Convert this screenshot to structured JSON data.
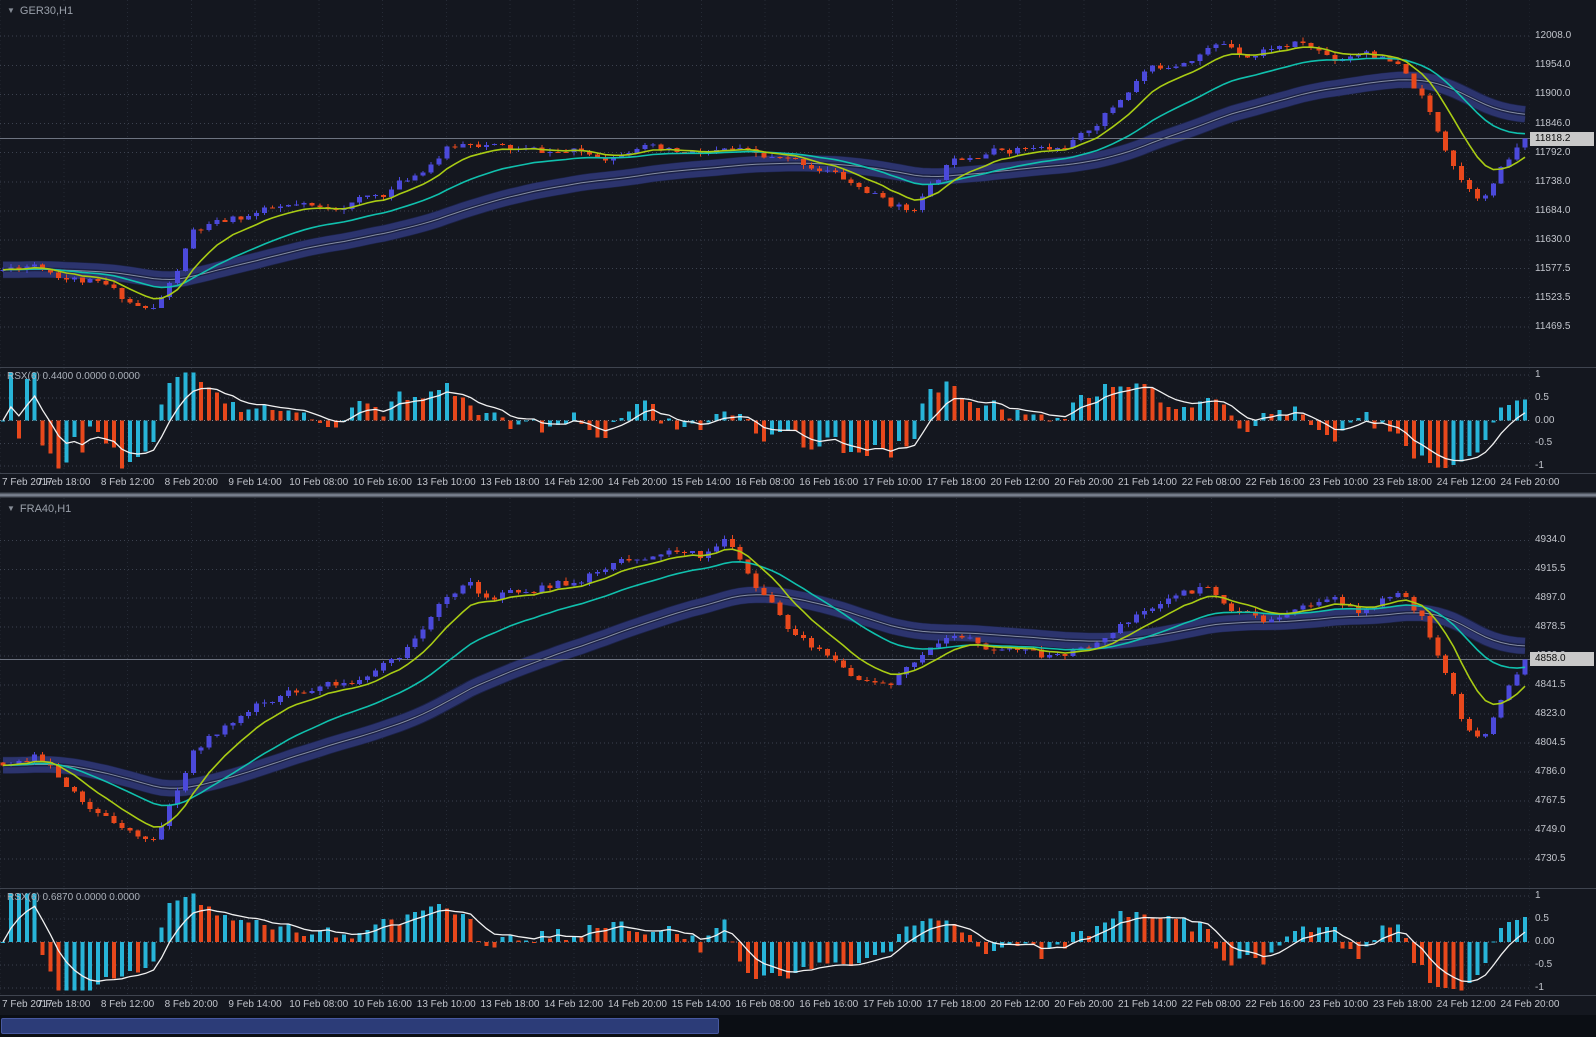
{
  "colors": {
    "background": "#14171f",
    "grid_h": "#3c424f",
    "grid_v": "#262b36",
    "bull": "#4b49da",
    "bear": "#e8481c",
    "ma_fast": "#a9cc14",
    "ma_slow": "#10c0ad",
    "band_core": "#1c2349",
    "band_edge": "#2c346e",
    "band_mid": "#98a0b2",
    "hist_up": "#28b4d8",
    "hist_down": "#e8481c",
    "rsx_line": "#f0f0f0",
    "zero_line": "#878d98",
    "axis_text": "#c2c5cc",
    "title_text": "#9aa0aa",
    "current_line": "#6d7380",
    "price_tag_bg": "#c9c9c9",
    "price_tag_text": "#0d0d0d",
    "scrollbar_thumb": "#2c3c78",
    "scrollbar_thumb_border": "#47589f",
    "scrollbar_track": "#0b0e14"
  },
  "time_axis_labels": [
    "7 Feb 2017",
    "7 Feb 18:00",
    "8 Feb 12:00",
    "8 Feb 20:00",
    "9 Feb 14:00",
    "10 Feb 08:00",
    "10 Feb 16:00",
    "13 Feb 10:00",
    "13 Feb 18:00",
    "14 Feb 12:00",
    "14 Feb 20:00",
    "15 Feb 14:00",
    "16 Feb 08:00",
    "16 Feb 16:00",
    "17 Feb 10:00",
    "17 Feb 18:00",
    "20 Feb 12:00",
    "20 Feb 20:00",
    "21 Feb 14:00",
    "22 Feb 08:00",
    "22 Feb 16:00",
    "23 Feb 10:00",
    "23 Feb 18:00",
    "24 Feb 12:00",
    "24 Feb 20:00"
  ],
  "rsx_axis_ticks": [
    "1",
    "0.5",
    "0.00",
    "-0.5",
    "-1"
  ],
  "chart_data": [
    {
      "type": "candlestick",
      "symbol": "GER30",
      "timeframe": "H1",
      "title": "GER30,H1",
      "collapse_icon": "▼",
      "current_price": 11818.2,
      "current_price_label": "11818.2",
      "y_axis": {
        "min": 11395,
        "max": 12075,
        "ticks": [
          "12008.0",
          "11954.0",
          "11900.0",
          "11846.0",
          "11792.0",
          "11738.0",
          "11684.0",
          "11630.0",
          "11577.5",
          "11523.5",
          "11469.5"
        ]
      },
      "n_candles": 193,
      "seed": 11,
      "volatility": 9,
      "anchors": [
        [
          0,
          11575
        ],
        [
          0.5,
          11588
        ],
        [
          1,
          11562
        ],
        [
          1.6,
          11545
        ],
        [
          2,
          11516
        ],
        [
          2.35,
          11497
        ],
        [
          2.7,
          11560
        ],
        [
          3,
          11645
        ],
        [
          3.5,
          11663
        ],
        [
          4,
          11680
        ],
        [
          4.6,
          11692
        ],
        [
          5,
          11686
        ],
        [
          5.5,
          11700
        ],
        [
          6,
          11716
        ],
        [
          6.5,
          11752
        ],
        [
          7,
          11798
        ],
        [
          7.4,
          11814
        ],
        [
          8,
          11797
        ],
        [
          9,
          11792
        ],
        [
          9.6,
          11786
        ],
        [
          10,
          11810
        ],
        [
          10.4,
          11792
        ],
        [
          11,
          11788
        ],
        [
          11.5,
          11796
        ],
        [
          12,
          11782
        ],
        [
          12.6,
          11772
        ],
        [
          13,
          11760
        ],
        [
          13.5,
          11728
        ],
        [
          14,
          11698
        ],
        [
          14.3,
          11684
        ],
        [
          14.7,
          11736
        ],
        [
          15,
          11786
        ],
        [
          15.5,
          11796
        ],
        [
          16,
          11800
        ],
        [
          16.6,
          11797
        ],
        [
          17,
          11820
        ],
        [
          17.5,
          11876
        ],
        [
          18,
          11942
        ],
        [
          18.5,
          11960
        ],
        [
          19,
          11984
        ],
        [
          19.3,
          11996
        ],
        [
          19.7,
          11972
        ],
        [
          20,
          11988
        ],
        [
          20.5,
          11994
        ],
        [
          21,
          11966
        ],
        [
          21.5,
          11984
        ],
        [
          22,
          11950
        ],
        [
          22.35,
          11898
        ],
        [
          22.7,
          11815
        ],
        [
          23,
          11745
        ],
        [
          23.35,
          11708
        ],
        [
          23.7,
          11772
        ],
        [
          24,
          11816
        ]
      ],
      "indicators": {
        "ma_fast_period": 8,
        "ma_slow_period": 22,
        "band_period": 50,
        "rsx": {
          "label": "RSX(6) 0.4400 0.0000 0.0000",
          "period": 6,
          "last": 0.44
        }
      }
    },
    {
      "type": "candlestick",
      "symbol": "FRA40",
      "timeframe": "H1",
      "title": "FRA40,H1",
      "collapse_icon": "▼",
      "current_price": 4858.0,
      "current_price_label": "4858.0",
      "y_axis": {
        "min": 4712,
        "max": 4961,
        "ticks": [
          "4934.0",
          "4915.5",
          "4897.0",
          "4878.5",
          "4860.0",
          "4841.5",
          "4823.0",
          "4804.5",
          "4786.0",
          "4767.5",
          "4749.0",
          "4730.5"
        ]
      },
      "n_candles": 193,
      "seed": 29,
      "volatility": 3.2,
      "anchors": [
        [
          0,
          4792
        ],
        [
          0.5,
          4798
        ],
        [
          1,
          4778
        ],
        [
          1.5,
          4760
        ],
        [
          2,
          4752
        ],
        [
          2.35,
          4741
        ],
        [
          2.7,
          4770
        ],
        [
          3,
          4798
        ],
        [
          3.5,
          4816
        ],
        [
          4,
          4828
        ],
        [
          4.5,
          4836
        ],
        [
          5,
          4841
        ],
        [
          5.5,
          4846
        ],
        [
          6,
          4853
        ],
        [
          6.5,
          4868
        ],
        [
          7,
          4897
        ],
        [
          7.3,
          4909
        ],
        [
          7.6,
          4896
        ],
        [
          8,
          4899
        ],
        [
          8.5,
          4903
        ],
        [
          9,
          4908
        ],
        [
          9.5,
          4916
        ],
        [
          10,
          4923
        ],
        [
          10.5,
          4929
        ],
        [
          11,
          4925
        ],
        [
          11.4,
          4935
        ],
        [
          11.75,
          4914
        ],
        [
          12,
          4897
        ],
        [
          12.4,
          4878
        ],
        [
          13,
          4861
        ],
        [
          13.4,
          4849
        ],
        [
          14,
          4845
        ],
        [
          14.4,
          4853
        ],
        [
          14.8,
          4867
        ],
        [
          15,
          4873
        ],
        [
          15.5,
          4865
        ],
        [
          16,
          4862
        ],
        [
          16.5,
          4859
        ],
        [
          17,
          4864
        ],
        [
          17.5,
          4876
        ],
        [
          18,
          4891
        ],
        [
          18.4,
          4897
        ],
        [
          19,
          4903
        ],
        [
          19.4,
          4887
        ],
        [
          20,
          4883
        ],
        [
          20.5,
          4893
        ],
        [
          21,
          4899
        ],
        [
          21.4,
          4889
        ],
        [
          22,
          4899
        ],
        [
          22.4,
          4885
        ],
        [
          22.75,
          4848
        ],
        [
          23,
          4820
        ],
        [
          23.35,
          4806
        ],
        [
          23.7,
          4838
        ],
        [
          24,
          4858
        ]
      ],
      "indicators": {
        "ma_fast_period": 8,
        "ma_slow_period": 22,
        "band_period": 50,
        "rsx": {
          "label": "RSX(6) 0.6870 0.0000 0.0000",
          "period": 6,
          "last": 0.687
        }
      }
    }
  ]
}
